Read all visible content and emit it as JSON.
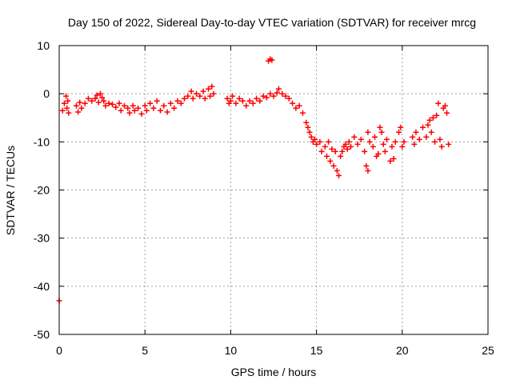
{
  "chart_data": {
    "type": "scatter",
    "title": "Day 150 of 2022, Sidereal Day-to-day VTEC variation (SDTVAR) for receiver mrcg",
    "xlabel": "GPS time / hours",
    "ylabel": "SDTVAR / TECUs",
    "xlim": [
      0,
      25
    ],
    "ylim": [
      -50,
      10
    ],
    "xticks": [
      0,
      5,
      10,
      15,
      20,
      25
    ],
    "xtick_labels": [
      "0",
      "5",
      "10",
      "15",
      "20",
      "25"
    ],
    "yticks": [
      10,
      0,
      -10,
      -20,
      -30,
      -40,
      -50
    ],
    "ytick_labels": [
      "10",
      "0",
      "-10",
      "-20",
      "-30",
      "-40",
      "-50"
    ],
    "grid": true,
    "marker": "+",
    "color": "#ff0000",
    "series": [
      {
        "name": "SDTVAR",
        "points": [
          [
            0.0,
            -43
          ],
          [
            0.2,
            -3.5
          ],
          [
            0.3,
            -2.0
          ],
          [
            0.4,
            -0.5
          ],
          [
            0.45,
            -3.0
          ],
          [
            0.5,
            -1.5
          ],
          [
            0.55,
            -4.0
          ],
          [
            1.0,
            -2.5
          ],
          [
            1.1,
            -3.8
          ],
          [
            1.2,
            -1.8
          ],
          [
            1.3,
            -3.0
          ],
          [
            1.5,
            -2.0
          ],
          [
            1.7,
            -1.0
          ],
          [
            1.9,
            -1.5
          ],
          [
            2.1,
            -1.0
          ],
          [
            2.2,
            -0.3
          ],
          [
            2.3,
            -1.8
          ],
          [
            2.4,
            0.0
          ],
          [
            2.5,
            -0.8
          ],
          [
            2.6,
            -1.5
          ],
          [
            2.7,
            -2.5
          ],
          [
            2.9,
            -2.0
          ],
          [
            3.1,
            -2.2
          ],
          [
            3.3,
            -2.8
          ],
          [
            3.5,
            -2.0
          ],
          [
            3.6,
            -3.5
          ],
          [
            3.8,
            -2.5
          ],
          [
            4.0,
            -3.0
          ],
          [
            4.1,
            -4.0
          ],
          [
            4.3,
            -2.5
          ],
          [
            4.4,
            -3.5
          ],
          [
            4.6,
            -3.0
          ],
          [
            4.8,
            -4.2
          ],
          [
            5.0,
            -2.5
          ],
          [
            5.1,
            -3.5
          ],
          [
            5.3,
            -2.0
          ],
          [
            5.5,
            -3.0
          ],
          [
            5.7,
            -1.5
          ],
          [
            5.9,
            -3.5
          ],
          [
            6.1,
            -2.5
          ],
          [
            6.3,
            -3.8
          ],
          [
            6.5,
            -2.0
          ],
          [
            6.7,
            -3.0
          ],
          [
            6.9,
            -1.5
          ],
          [
            7.1,
            -2.0
          ],
          [
            7.3,
            -1.0
          ],
          [
            7.5,
            -0.5
          ],
          [
            7.7,
            0.5
          ],
          [
            7.8,
            -1.0
          ],
          [
            8.0,
            0.0
          ],
          [
            8.2,
            -0.5
          ],
          [
            8.4,
            0.5
          ],
          [
            8.5,
            -1.0
          ],
          [
            8.7,
            1.0
          ],
          [
            8.8,
            -0.5
          ],
          [
            8.9,
            1.5
          ],
          [
            9.0,
            0.0
          ],
          [
            9.8,
            -1.0
          ],
          [
            9.9,
            -2.0
          ],
          [
            10.0,
            -1.5
          ],
          [
            10.1,
            -0.5
          ],
          [
            10.3,
            -2.0
          ],
          [
            10.5,
            -1.0
          ],
          [
            10.7,
            -1.5
          ],
          [
            10.9,
            -2.5
          ],
          [
            11.1,
            -1.5
          ],
          [
            11.3,
            -2.0
          ],
          [
            11.5,
            -1.0
          ],
          [
            11.7,
            -1.5
          ],
          [
            11.9,
            -0.5
          ],
          [
            12.1,
            -0.8
          ],
          [
            12.3,
            0.0
          ],
          [
            12.5,
            -0.5
          ],
          [
            12.7,
            0.2
          ],
          [
            12.8,
            1.0
          ],
          [
            13.0,
            0.0
          ],
          [
            13.2,
            -0.5
          ],
          [
            12.2,
            6.8
          ],
          [
            12.3,
            7.2
          ],
          [
            12.4,
            7.0
          ],
          [
            13.4,
            -1.0
          ],
          [
            13.6,
            -2.0
          ],
          [
            13.8,
            -3.0
          ],
          [
            14.0,
            -2.5
          ],
          [
            14.2,
            -4.0
          ],
          [
            14.4,
            -6.0
          ],
          [
            14.5,
            -7.0
          ],
          [
            14.6,
            -8.0
          ],
          [
            14.7,
            -9.0
          ],
          [
            14.8,
            -10.0
          ],
          [
            14.9,
            -9.5
          ],
          [
            15.0,
            -10.5
          ],
          [
            15.2,
            -10.0
          ],
          [
            15.3,
            -12.0
          ],
          [
            15.5,
            -11.0
          ],
          [
            15.6,
            -13.0
          ],
          [
            15.7,
            -10.0
          ],
          [
            15.8,
            -14.0
          ],
          [
            15.9,
            -11.5
          ],
          [
            16.0,
            -15.0
          ],
          [
            16.1,
            -12.0
          ],
          [
            16.2,
            -16.0
          ],
          [
            16.3,
            -17.0
          ],
          [
            16.4,
            -13.0
          ],
          [
            16.5,
            -12.0
          ],
          [
            16.6,
            -11.0
          ],
          [
            16.7,
            -10.5
          ],
          [
            16.8,
            -11.5
          ],
          [
            16.9,
            -10.0
          ],
          [
            17.0,
            -11.0
          ],
          [
            17.2,
            -9.0
          ],
          [
            17.4,
            -10.5
          ],
          [
            17.6,
            -9.5
          ],
          [
            17.8,
            -12.0
          ],
          [
            17.9,
            -15.0
          ],
          [
            18.0,
            -16.0
          ],
          [
            18.0,
            -8.0
          ],
          [
            18.1,
            -10.0
          ],
          [
            18.3,
            -11.0
          ],
          [
            18.4,
            -9.0
          ],
          [
            18.5,
            -13.0
          ],
          [
            18.6,
            -12.5
          ],
          [
            18.7,
            -7.0
          ],
          [
            18.8,
            -8.0
          ],
          [
            18.9,
            -10.5
          ],
          [
            19.0,
            -12.0
          ],
          [
            19.1,
            -9.5
          ],
          [
            19.3,
            -14.0
          ],
          [
            19.4,
            -11.0
          ],
          [
            19.5,
            -13.5
          ],
          [
            19.6,
            -10.0
          ],
          [
            19.8,
            -8.0
          ],
          [
            19.9,
            -7.0
          ],
          [
            20.0,
            -11.0
          ],
          [
            20.1,
            -10.0
          ],
          [
            20.6,
            -9.0
          ],
          [
            20.7,
            -10.5
          ],
          [
            20.8,
            -8.0
          ],
          [
            21.0,
            -9.5
          ],
          [
            21.2,
            -7.0
          ],
          [
            21.4,
            -9.0
          ],
          [
            21.5,
            -6.5
          ],
          [
            21.6,
            -5.5
          ],
          [
            21.7,
            -8.0
          ],
          [
            21.8,
            -5.0
          ],
          [
            21.9,
            -10.0
          ],
          [
            22.0,
            -4.5
          ],
          [
            22.1,
            -2.0
          ],
          [
            22.2,
            -9.5
          ],
          [
            22.3,
            -11.0
          ],
          [
            22.4,
            -3.0
          ],
          [
            22.5,
            -2.5
          ],
          [
            22.6,
            -4.0
          ],
          [
            22.7,
            -10.5
          ]
        ]
      }
    ]
  }
}
